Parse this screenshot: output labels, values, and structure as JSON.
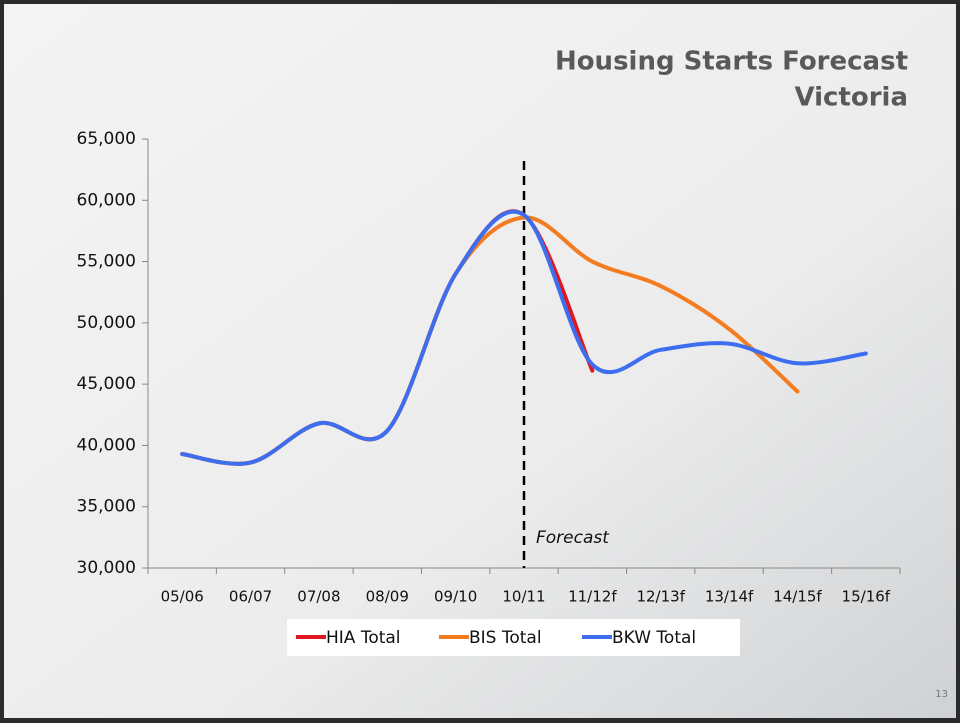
{
  "chart_data": {
    "type": "line",
    "title": "Housing Starts Forecast",
    "subtitle": "Victoria",
    "categories": [
      "05/06",
      "06/07",
      "07/08",
      "08/09",
      "09/10",
      "10/11",
      "11/12f",
      "12/13f",
      "13/14f",
      "14/15f",
      "15/16f"
    ],
    "series": [
      {
        "name": "HIA Total",
        "color": "#e0171f",
        "values": [
          39300,
          38600,
          41800,
          41200,
          54000,
          58800,
          46100,
          null,
          null,
          null,
          null
        ]
      },
      {
        "name": "BIS Total",
        "color": "#f47c20",
        "values": [
          39300,
          38600,
          41800,
          41200,
          54000,
          58600,
          55000,
          53000,
          49500,
          44400,
          null
        ]
      },
      {
        "name": "BKW Total",
        "color": "#3d6ef0",
        "values": [
          39300,
          38600,
          41800,
          41200,
          54000,
          58800,
          46600,
          47800,
          48300,
          46700,
          47500
        ]
      }
    ],
    "ylim": [
      30000,
      65000
    ],
    "yticks": [
      {
        "value": 30000,
        "label": "30,000"
      },
      {
        "value": 35000,
        "label": "35,000"
      },
      {
        "value": 40000,
        "label": "40,000"
      },
      {
        "value": 45000,
        "label": "45,000"
      },
      {
        "value": 50000,
        "label": "50,000"
      },
      {
        "value": 55000,
        "label": "55,000"
      },
      {
        "value": 60000,
        "label": "60,000"
      },
      {
        "value": 65000,
        "label": "65,000"
      }
    ],
    "annotation": "Forecast",
    "grid": false,
    "legend": "bottom"
  },
  "slide_number": "13"
}
